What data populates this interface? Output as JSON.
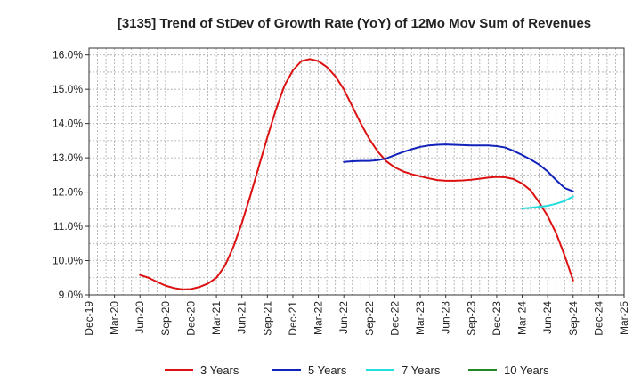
{
  "chart_data": {
    "type": "line",
    "title": "[3135]  Trend of StDev of Growth Rate (YoY) of 12Mo Mov Sum of Revenues",
    "xlabel": "",
    "ylabel": "",
    "grid": true,
    "legend_position": "bottom",
    "x_ticks": [
      "Dec-19",
      "Mar-20",
      "Jun-20",
      "Sep-20",
      "Dec-20",
      "Mar-21",
      "Jun-21",
      "Sep-21",
      "Dec-21",
      "Mar-22",
      "Jun-22",
      "Sep-22",
      "Dec-22",
      "Mar-23",
      "Jun-23",
      "Sep-23",
      "Dec-23",
      "Mar-24",
      "Jun-24",
      "Sep-24",
      "Dec-24",
      "Mar-25"
    ],
    "y_ticks": [
      "9.0%",
      "10.0%",
      "11.0%",
      "12.0%",
      "13.0%",
      "14.0%",
      "15.0%",
      "16.0%"
    ],
    "ylim": [
      9.0,
      16.2
    ],
    "series": [
      {
        "name": "3 Years",
        "color": "#dd1111",
        "points": [
          [
            6,
            9.58
          ],
          [
            7,
            9.5
          ],
          [
            8,
            9.38
          ],
          [
            9,
            9.27
          ],
          [
            10,
            9.2
          ],
          [
            11,
            9.16
          ],
          [
            12,
            9.17
          ],
          [
            13,
            9.23
          ],
          [
            14,
            9.33
          ],
          [
            15,
            9.5
          ],
          [
            16,
            9.85
          ],
          [
            17,
            10.4
          ],
          [
            18,
            11.1
          ],
          [
            19,
            11.9
          ],
          [
            20,
            12.75
          ],
          [
            21,
            13.6
          ],
          [
            22,
            14.4
          ],
          [
            23,
            15.1
          ],
          [
            24,
            15.55
          ],
          [
            25,
            15.82
          ],
          [
            26,
            15.88
          ],
          [
            27,
            15.82
          ],
          [
            28,
            15.65
          ],
          [
            29,
            15.38
          ],
          [
            30,
            15.0
          ],
          [
            31,
            14.5
          ],
          [
            32,
            14.0
          ],
          [
            33,
            13.55
          ],
          [
            34,
            13.18
          ],
          [
            35,
            12.9
          ],
          [
            36,
            12.72
          ],
          [
            37,
            12.6
          ],
          [
            38,
            12.52
          ],
          [
            39,
            12.46
          ],
          [
            40,
            12.4
          ],
          [
            41,
            12.35
          ],
          [
            42,
            12.33
          ],
          [
            43,
            12.33
          ],
          [
            44,
            12.34
          ],
          [
            45,
            12.36
          ],
          [
            46,
            12.39
          ],
          [
            47,
            12.42
          ],
          [
            48,
            12.44
          ],
          [
            49,
            12.43
          ],
          [
            50,
            12.38
          ],
          [
            51,
            12.25
          ],
          [
            52,
            12.05
          ],
          [
            53,
            11.7
          ],
          [
            54,
            11.3
          ],
          [
            55,
            10.8
          ],
          [
            56,
            10.15
          ],
          [
            57,
            9.42
          ]
        ]
      },
      {
        "name": "5 Years",
        "color": "#1122bb",
        "points": [
          [
            30,
            12.88
          ],
          [
            31,
            12.9
          ],
          [
            32,
            12.91
          ],
          [
            33,
            12.91
          ],
          [
            34,
            12.93
          ],
          [
            35,
            12.98
          ],
          [
            36,
            13.08
          ],
          [
            37,
            13.17
          ],
          [
            38,
            13.25
          ],
          [
            39,
            13.32
          ],
          [
            40,
            13.36
          ],
          [
            41,
            13.38
          ],
          [
            42,
            13.39
          ],
          [
            43,
            13.38
          ],
          [
            44,
            13.37
          ],
          [
            45,
            13.36
          ],
          [
            46,
            13.36
          ],
          [
            47,
            13.36
          ],
          [
            48,
            13.34
          ],
          [
            49,
            13.3
          ],
          [
            50,
            13.2
          ],
          [
            51,
            13.08
          ],
          [
            52,
            12.95
          ],
          [
            53,
            12.8
          ],
          [
            54,
            12.6
          ],
          [
            55,
            12.35
          ],
          [
            56,
            12.12
          ],
          [
            57,
            12.02
          ]
        ]
      },
      {
        "name": "7 Years",
        "color": "#22dddd",
        "points": [
          [
            51,
            11.52
          ],
          [
            52,
            11.54
          ],
          [
            53,
            11.57
          ],
          [
            54,
            11.6
          ],
          [
            55,
            11.66
          ],
          [
            56,
            11.74
          ],
          [
            57,
            11.87
          ]
        ]
      },
      {
        "name": "10 Years",
        "color": "#228822",
        "points": []
      }
    ]
  }
}
